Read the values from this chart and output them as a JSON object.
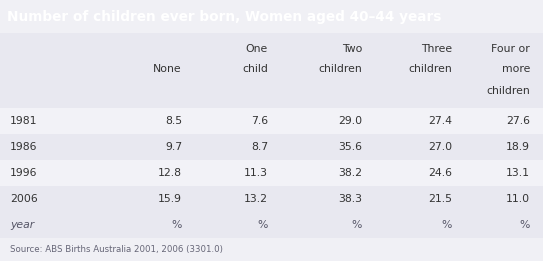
{
  "title": "Number of children ever born, Women aged 40–44 years",
  "title_bg_color": "#6b8e23",
  "title_text_color": "#ffffff",
  "unit_row": [
    "year",
    "%",
    "%",
    "%",
    "%",
    "%"
  ],
  "data_rows": [
    [
      "2006",
      "15.9",
      "13.2",
      "38.3",
      "21.5",
      "11.0"
    ],
    [
      "1996",
      "12.8",
      "11.3",
      "38.2",
      "24.6",
      "13.1"
    ],
    [
      "1986",
      "9.7",
      "8.7",
      "35.6",
      "27.0",
      "18.9"
    ],
    [
      "1981",
      "8.5",
      "7.6",
      "29.0",
      "27.4",
      "27.6"
    ]
  ],
  "source": "Source: ABS Births Australia 2001, 2006 (3301.0)",
  "header_lines": [
    [
      "",
      "",
      "One",
      "Two",
      "Three",
      "Four or"
    ],
    [
      "",
      "None",
      "child",
      "children",
      "children",
      "more"
    ],
    [
      "",
      "",
      "",
      "",
      "",
      "children"
    ]
  ],
  "bg_color": "#f0f0f5",
  "row_colors": [
    "#e8e8f0",
    "#f2f2f7",
    "#e8e8f0",
    "#f2f2f7"
  ],
  "header_bg": "#e8e8f0",
  "unit_bg": "#e8e8f0",
  "source_bg": "#e8e8f0"
}
